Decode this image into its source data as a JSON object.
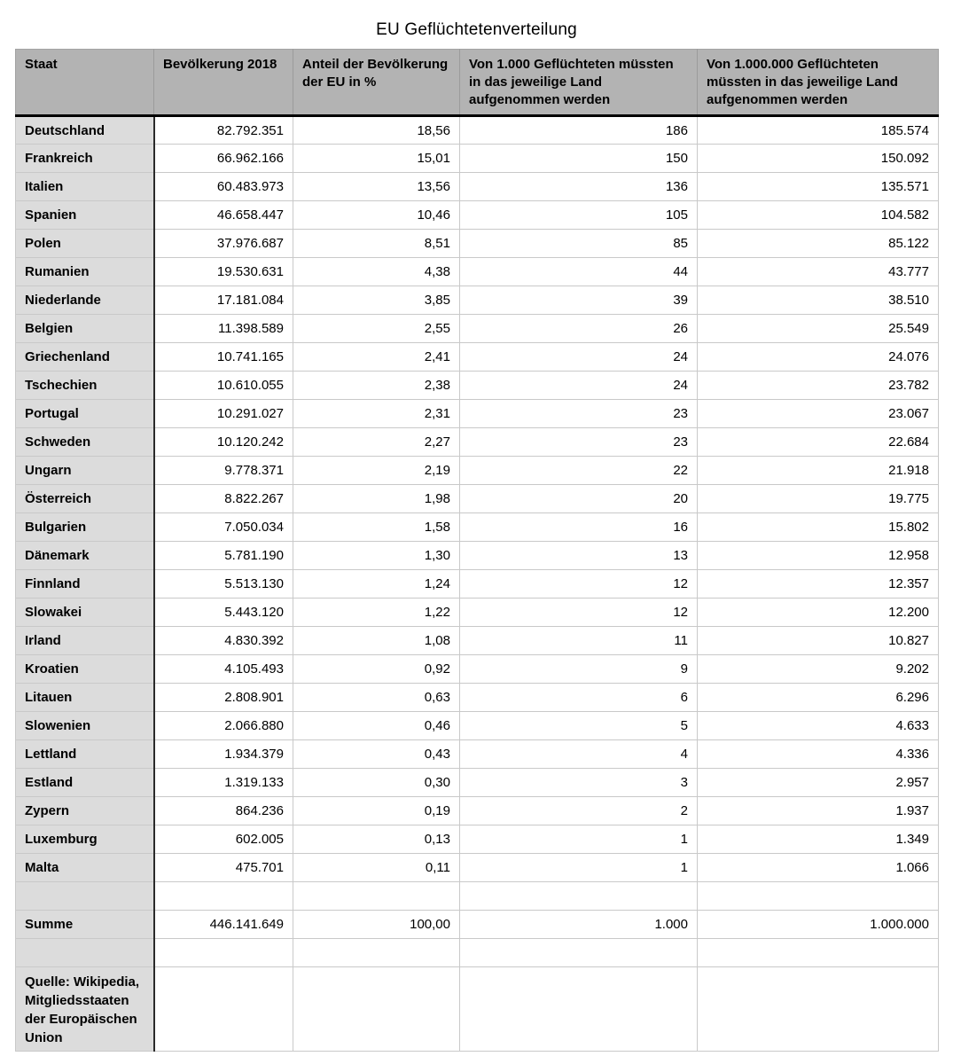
{
  "title": "EU Geflüchtetenverteilung",
  "colors": {
    "header_background": "#b3b3b3",
    "label_column_background": "#dcdcdc",
    "grid_line": "#c9c9c9",
    "header_underline": "#000000",
    "label_column_divider": "#2b2b2b",
    "text": "#000000"
  },
  "chart_data": {
    "type": "table",
    "title": "EU Geflüchtetenverteilung",
    "columns": [
      "Staat",
      "Bevölkerung 2018",
      "Anteil der Bevölkerung der EU in %",
      "Von 1.000 Geflüchteten müssten in das jeweilige Land aufgenommen werden",
      "Von 1.000.000 Geflüchteten müssten in das jeweilige Land aufgenommen werden"
    ],
    "rows": [
      [
        "Deutschland",
        "82.792.351",
        "18,56",
        "186",
        "185.574"
      ],
      [
        "Frankreich",
        "66.962.166",
        "15,01",
        "150",
        "150.092"
      ],
      [
        "Italien",
        "60.483.973",
        "13,56",
        "136",
        "135.571"
      ],
      [
        "Spanien",
        "46.658.447",
        "10,46",
        "105",
        "104.582"
      ],
      [
        "Polen",
        "37.976.687",
        "8,51",
        "85",
        "85.122"
      ],
      [
        "Rumanien",
        "19.530.631",
        "4,38",
        "44",
        "43.777"
      ],
      [
        "Niederlande",
        "17.181.084",
        "3,85",
        "39",
        "38.510"
      ],
      [
        "Belgien",
        "11.398.589",
        "2,55",
        "26",
        "25.549"
      ],
      [
        "Griechenland",
        "10.741.165",
        "2,41",
        "24",
        "24.076"
      ],
      [
        "Tschechien",
        "10.610.055",
        "2,38",
        "24",
        "23.782"
      ],
      [
        "Portugal",
        "10.291.027",
        "2,31",
        "23",
        "23.067"
      ],
      [
        "Schweden",
        "10.120.242",
        "2,27",
        "23",
        "22.684"
      ],
      [
        "Ungarn",
        "9.778.371",
        "2,19",
        "22",
        "21.918"
      ],
      [
        "Österreich",
        "8.822.267",
        "1,98",
        "20",
        "19.775"
      ],
      [
        "Bulgarien",
        "7.050.034",
        "1,58",
        "16",
        "15.802"
      ],
      [
        "Dänemark",
        "5.781.190",
        "1,30",
        "13",
        "12.958"
      ],
      [
        "Finnland",
        "5.513.130",
        "1,24",
        "12",
        "12.357"
      ],
      [
        "Slowakei",
        "5.443.120",
        "1,22",
        "12",
        "12.200"
      ],
      [
        "Irland",
        "4.830.392",
        "1,08",
        "11",
        "10.827"
      ],
      [
        "Kroatien",
        "4.105.493",
        "0,92",
        "9",
        "9.202"
      ],
      [
        "Litauen",
        "2.808.901",
        "0,63",
        "6",
        "6.296"
      ],
      [
        "Slowenien",
        "2.066.880",
        "0,46",
        "5",
        "4.633"
      ],
      [
        "Lettland",
        "1.934.379",
        "0,43",
        "4",
        "4.336"
      ],
      [
        "Estland",
        "1.319.133",
        "0,30",
        "3",
        "2.957"
      ],
      [
        "Zypern",
        "864.236",
        "0,19",
        "2",
        "1.937"
      ],
      [
        "Luxemburg",
        "602.005",
        "0,13",
        "1",
        "1.349"
      ],
      [
        "Malta",
        "475.701",
        "0,11",
        "1",
        "1.066"
      ]
    ],
    "summary_row": [
      "Summe",
      "446.141.649",
      "100,00",
      "1.000",
      "1.000.000"
    ],
    "source_note": "Quelle: Wikipedia, Mitgliedsstaaten der Europäischen Union"
  }
}
